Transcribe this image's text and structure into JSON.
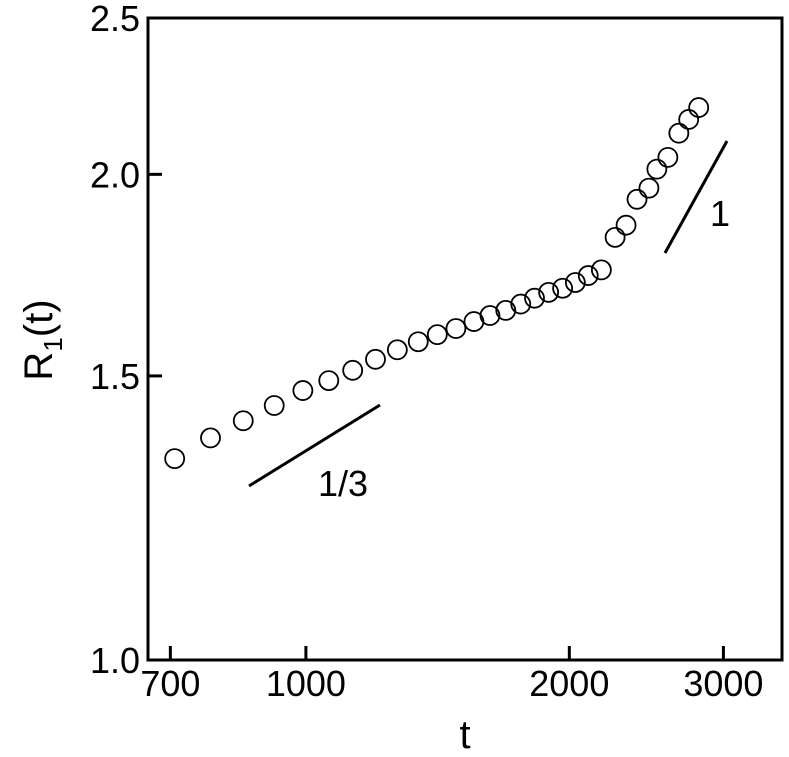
{
  "chart_data": {
    "type": "scatter",
    "xlabel": "t",
    "ylabel_parts": [
      "R",
      "1",
      "(t)"
    ],
    "log_x": true,
    "log_y": true,
    "marker": "open-circle",
    "color": "#000000",
    "xlim": [
      660,
      3500
    ],
    "ylim": [
      1,
      2.5
    ],
    "xticks": [
      700,
      1000,
      2000,
      3000
    ],
    "yticks": [
      {
        "value": 1,
        "label": "1.0"
      },
      1.5,
      {
        "value": 2,
        "label": "2.0"
      },
      2.5
    ],
    "series": [
      {
        "name": "R1",
        "x": [
          708,
          778,
          848,
          920,
          992,
          1062,
          1131,
          1201,
          1272,
          1344,
          1413,
          1484,
          1556,
          1623,
          1692,
          1760,
          1825,
          1894,
          1965,
          2032,
          2102,
          2176,
          2256,
          2322,
          2390,
          2466,
          2518,
          2592,
          2668,
          2738,
          2811
        ],
        "values": [
          1.333,
          1.373,
          1.407,
          1.438,
          1.469,
          1.49,
          1.512,
          1.536,
          1.557,
          1.575,
          1.591,
          1.605,
          1.621,
          1.635,
          1.647,
          1.662,
          1.676,
          1.69,
          1.7,
          1.714,
          1.731,
          1.745,
          1.828,
          1.86,
          1.93,
          1.961,
          2.015,
          2.049,
          2.121,
          2.163,
          2.2
        ]
      }
    ],
    "annotations": [
      "1/3",
      "1"
    ]
  }
}
